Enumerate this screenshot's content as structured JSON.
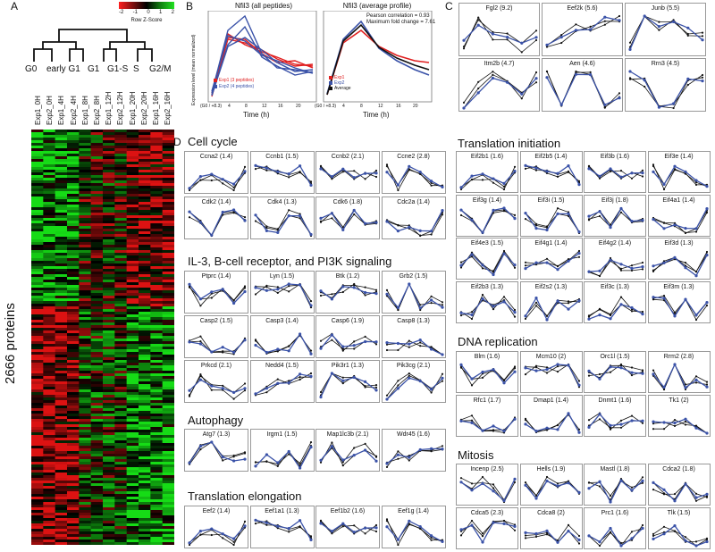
{
  "panel_letters": {
    "a": "A",
    "b": "B",
    "c": "C",
    "d": "D"
  },
  "heatmap": {
    "legend_title": "Row Z-Score",
    "legend_ticks": [
      "-2",
      "-1",
      "0",
      "1",
      "2"
    ],
    "groups": [
      "G0",
      "early G1",
      "G1",
      "G1-S",
      "S",
      "G2/M"
    ],
    "samples": [
      "Exp1_0H",
      "Exp2_0H",
      "Exp1_4H",
      "Exp2_4H",
      "Exp1_8H",
      "Exp2_8H",
      "Exp1_12H",
      "Exp2_12H",
      "Exp1_20H",
      "Exp2_20H",
      "Exp1_16H",
      "Exp2_16H"
    ],
    "row_label": "2666 proteins"
  },
  "panelB": {
    "ylabel": "Expression level (mean normalized)",
    "left": {
      "title": "Nfil3 (all peptides)",
      "xlabel": "Time (h)",
      "xticks": [
        "(G0 / +8.3)",
        "4",
        "8",
        "12",
        "16",
        "20"
      ],
      "legend": [
        "Exp1 (3 peptides)",
        "Exp2 (4 peptides)"
      ]
    },
    "right": {
      "title": "Nfil3 (average profile)",
      "xlabel": "Time (h)",
      "xticks": [
        "(G0 / +8.3)",
        "4",
        "8",
        "12",
        "16",
        "20"
      ],
      "note1": "Pearson correlation = 0.93",
      "note2": "Maximum fold change = 7.61",
      "legend": [
        "Exp1",
        "Exp2",
        "Average"
      ]
    }
  },
  "panelC": [
    "Fgl2 (9.2)",
    "Eef2k (5.6)",
    "Junb (5.5)",
    "Itm2b (4.7)",
    "Aen (4.6)",
    "Rrn3 (4.5)"
  ],
  "sections": {
    "cell_cycle": {
      "title": "Cell cycle",
      "items": [
        "Ccna2 (1.4)",
        "Ccnb1 (1.5)",
        "Ccnb2 (2.1)",
        "Ccne2 (2.8)",
        "Cdk2 (1.4)",
        "Cdk4 (1.3)",
        "Cdk6 (1.8)",
        "Cdc2a (1.4)"
      ]
    },
    "il3": {
      "title": "IL-3, B-cell receptor, and PI3K signaling",
      "items": [
        "Ptprc (1.4)",
        "Lyn (1.5)",
        "Btk (1.2)",
        "Grb2 (1.5)",
        "Casp2 (1.5)",
        "Casp3 (1.4)",
        "Casp6 (1.9)",
        "Casp8 (1.3)",
        "Prkcd (2.1)",
        "Nedd4 (1.5)",
        "Pik3r1 (1.3)",
        "Pik3cg (2.1)"
      ]
    },
    "autophagy": {
      "title": "Autophagy",
      "items": [
        "Atg7 (1.3)",
        "Irgm1 (1.5)",
        "Map1lc3b (2.1)",
        "Wdr45 (1.6)"
      ]
    },
    "elongation": {
      "title": "Translation elongation",
      "items": [
        "Eef2 (1.4)",
        "Eef1a1 (1.3)",
        "Eef1b2 (1.6)",
        "Eef1g (1.4)"
      ]
    },
    "initiation": {
      "title": "Translation initiation",
      "items": [
        "Eif2b1 (1.6)",
        "Eif2b5 (1.4)",
        "Eif3b (1.6)",
        "Eif3e (1.4)",
        "Eif3g (1.4)",
        "Eif3i (1.5)",
        "Eif3j (1.8)",
        "Eif4a1 (1.4)",
        "Eif4e3 (1.5)",
        "Eif4g1 (1.4)",
        "Eif4g2 (1.4)",
        "Eif3d (1.3)",
        "Eif2b3 (1.3)",
        "Eif2s2 (1.3)",
        "Eif3c (1.3)",
        "Eif3m (1.3)"
      ]
    },
    "dna": {
      "title": "DNA replication",
      "items": [
        "Blm (1.6)",
        "Mcm10 (2)",
        "Orc1l (1.5)",
        "Rrm2 (2.8)",
        "Rfc1 (1.7)",
        "Dmap1 (1.4)",
        "Dnmt1 (1.6)",
        "Tk1 (2)"
      ]
    },
    "mitosis": {
      "title": "Mitosis",
      "items": [
        "Incenp (2.5)",
        "Hells (1.9)",
        "Mastl (1.8)",
        "Cdca2 (1.8)",
        "Cdca5 (2.3)",
        "Cdca8 (2)",
        "Prc1 (1.6)",
        "Tlk (1.5)"
      ]
    }
  },
  "colors": {
    "red": "#e02020",
    "blue": "#3a52a8",
    "black": "#111111",
    "green": "#2fbf2f",
    "heat_red": "#d01818"
  }
}
